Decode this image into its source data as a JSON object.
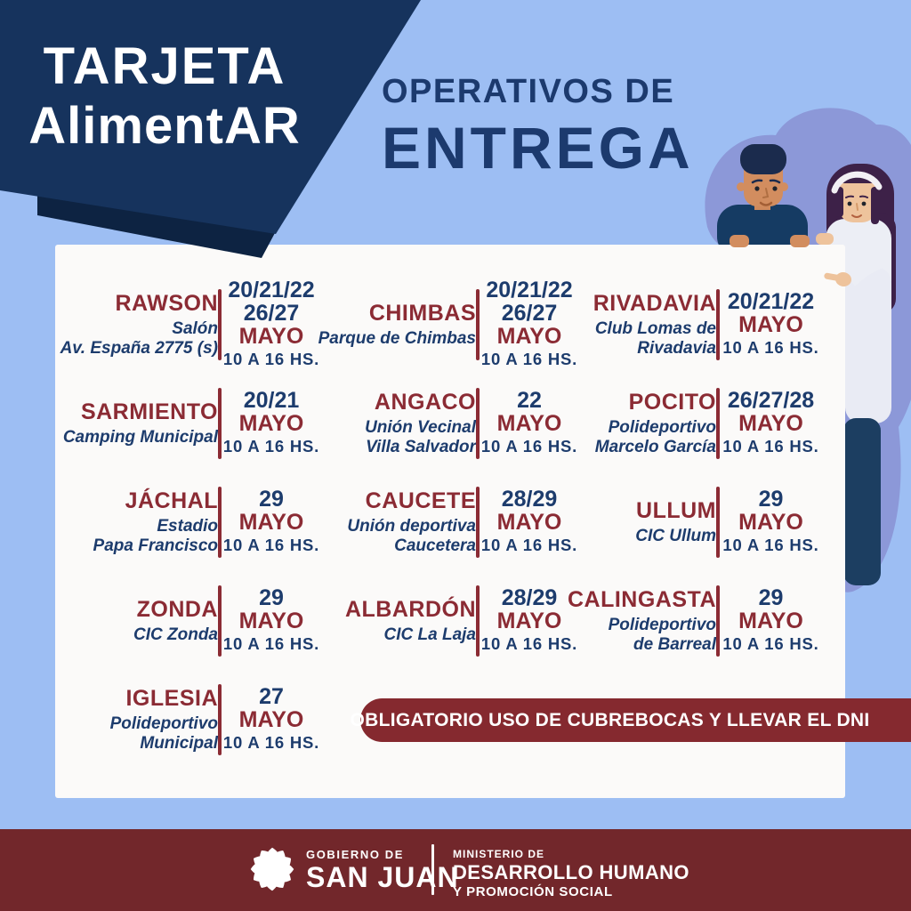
{
  "badge": {
    "line1": "TARJETA",
    "line2": "AlimentAR"
  },
  "title": {
    "line1": "OPERATIVOS DE",
    "line2": "ENTREGA"
  },
  "schedule": {
    "month_label": "MAYO",
    "time_label": "10 A 16 HS.",
    "entries": [
      {
        "department": "RAWSON",
        "venue": [
          "Salón",
          "Av. España 2775 (s)"
        ],
        "dates": [
          "20/21/22",
          "26/27"
        ]
      },
      {
        "department": "CHIMBAS",
        "venue": [
          "Parque de Chimbas"
        ],
        "dates": [
          "20/21/22",
          "26/27"
        ]
      },
      {
        "department": "RIVADAVIA",
        "venue": [
          "Club Lomas de",
          "Rivadavia"
        ],
        "dates": [
          "20/21/22"
        ]
      },
      {
        "department": "SARMIENTO",
        "venue": [
          "Camping Municipal"
        ],
        "dates": [
          "20/21"
        ]
      },
      {
        "department": "ANGACO",
        "venue": [
          "Unión Vecinal",
          "Villa Salvador"
        ],
        "dates": [
          "22"
        ]
      },
      {
        "department": "POCITO",
        "venue": [
          "Polideportivo",
          "Marcelo García"
        ],
        "dates": [
          "26/27/28"
        ]
      },
      {
        "department": "JÁCHAL",
        "venue": [
          "Estadio",
          "Papa Francisco"
        ],
        "dates": [
          "29"
        ]
      },
      {
        "department": "CAUCETE",
        "venue": [
          "Unión deportiva",
          "Caucetera"
        ],
        "dates": [
          "28/29"
        ]
      },
      {
        "department": "ULLUM",
        "venue": [
          "CIC Ullum"
        ],
        "dates": [
          "29"
        ]
      },
      {
        "department": "ZONDA",
        "venue": [
          "CIC Zonda"
        ],
        "dates": [
          "29"
        ]
      },
      {
        "department": "ALBARDÓN",
        "venue": [
          "CIC La Laja"
        ],
        "dates": [
          "28/29"
        ]
      },
      {
        "department": "CALINGASTA",
        "venue": [
          "Polideportivo",
          "de Barreal"
        ],
        "dates": [
          "29"
        ]
      },
      {
        "department": "IGLESIA",
        "venue": [
          "Polideportivo",
          "Municipal"
        ],
        "dates": [
          "27"
        ]
      }
    ]
  },
  "notice": {
    "text": "OBLIGATORIO USO DE CUBREBOCAS Y LLEVAR EL DNI"
  },
  "footer": {
    "gov_small": "GOBIERNO DE",
    "gov_big": "SAN JUAN",
    "ministry_small": "MINISTERIO DE",
    "ministry_big": "DESARROLLO HUMANO",
    "ministry_sub": "Y PROMOCIÓN SOCIAL"
  },
  "colors": {
    "background": "#9dbef3",
    "banner_navy": "#16335d",
    "banner_shadow": "#0d2342",
    "title_navy": "#1c3a6e",
    "card_bg": "#fbfaf9",
    "accent_red": "#8b2b34",
    "text_navy": "#1d3c6d",
    "notice_bg": "#85292f",
    "footer_bg": "#72272b",
    "blob_purple": "#8c98d8"
  }
}
